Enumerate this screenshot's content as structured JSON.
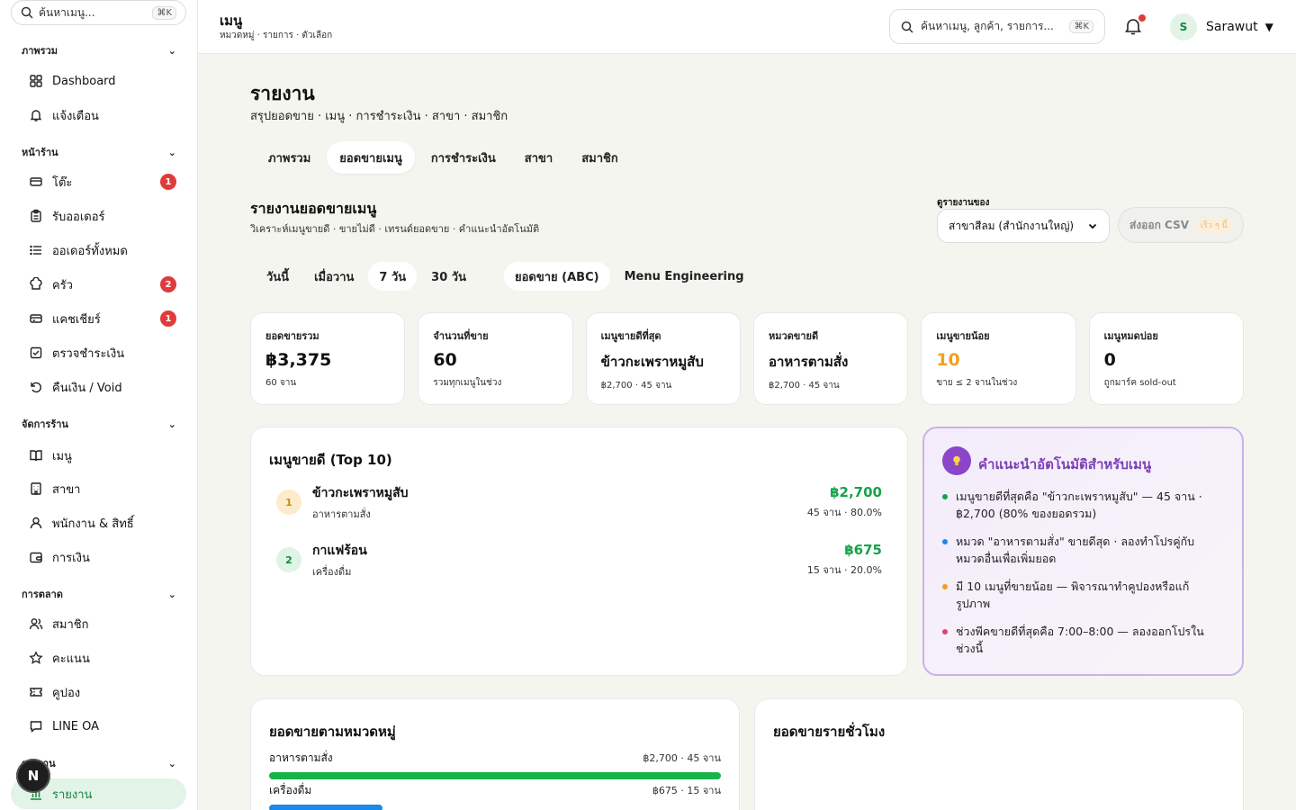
{
  "sidebar": {
    "search_placeholder": "ค้นหาเมนู...",
    "search_kbd": "⌘K",
    "sections": [
      {
        "label": "ภาพรวม",
        "items": [
          {
            "label": "Dashboard"
          },
          {
            "label": "แจ้งเตือน"
          }
        ]
      },
      {
        "label": "หน้าร้าน",
        "items": [
          {
            "label": "โต๊ะ",
            "badge": "1"
          },
          {
            "label": "รับออเดอร์"
          },
          {
            "label": "ออเดอร์ทั้งหมด"
          },
          {
            "label": "ครัว",
            "badge": "2"
          },
          {
            "label": "แคชเชียร์",
            "badge": "1"
          },
          {
            "label": "ตรวจชำระเงิน"
          },
          {
            "label": "คืนเงิน / Void"
          }
        ]
      },
      {
        "label": "จัดการร้าน",
        "items": [
          {
            "label": "เมนู"
          },
          {
            "label": "สาขา"
          },
          {
            "label": "พนักงาน & สิทธิ์"
          },
          {
            "label": "การเงิน"
          }
        ]
      },
      {
        "label": "การตลาด",
        "items": [
          {
            "label": "สมาชิก"
          },
          {
            "label": "คะแนน"
          },
          {
            "label": "คูปอง"
          },
          {
            "label": "LINE OA"
          }
        ]
      },
      {
        "label": "รายงาน",
        "items": [
          {
            "label": "รายงาน"
          }
        ]
      }
    ],
    "fab_label": "N"
  },
  "topbar": {
    "title": "เมนู",
    "subtitle": "หมวดหมู่ · รายการ · ตัวเลือก",
    "search_placeholder": "ค้นหาเมนู, ลูกค้า, รายการ...",
    "search_kbd": "⌘K",
    "user_initial": "S",
    "user_name": "Sarawut",
    "caret": "▼"
  },
  "page": {
    "title": "รายงาน",
    "subtitle": "สรุปยอดขาย · เมนู · การชำระเงิน · สาขา · สมาชิก",
    "tabs": [
      {
        "label": "ภาพรวม"
      },
      {
        "label": "ยอดขายเมนู",
        "active": true
      },
      {
        "label": "การชำระเงิน"
      },
      {
        "label": "สาขา"
      },
      {
        "label": "สมาชิก"
      }
    ]
  },
  "report": {
    "title": "รายงานยอดขายเมนู",
    "subtitle": "วิเคราะห์เมนูขายดี · ขายไม่ดี · เทรนด์ยอดขาย · คำแนะนำอัตโนมัติ",
    "branch_label": "ดูรายงานของ",
    "branch_value": "สาขาสีลม (สำนักงานใหญ่)",
    "csv_label": "ส่งออก CSV",
    "csv_soon": "เร็ว ๆ นี้",
    "ranges": [
      {
        "label": "วันนี้"
      },
      {
        "label": "เมื่อวาน"
      },
      {
        "label": "7 วัน",
        "active": true
      },
      {
        "label": "30 วัน"
      }
    ],
    "views": [
      {
        "label": "ยอดขาย (ABC)",
        "active": true
      },
      {
        "label": "Menu Engineering"
      }
    ]
  },
  "kpis": [
    {
      "label": "ยอดขายรวม",
      "value": "฿3,375",
      "sub": "60 จาน"
    },
    {
      "label": "จำนวนที่ขาย",
      "value": "60",
      "sub": "รวมทุกเมนูในช่วง"
    },
    {
      "label": "เมนูขายดีที่สุด",
      "value": "ข้าวกะเพราหมูสับ",
      "sub": "฿2,700 · 45 จาน"
    },
    {
      "label": "หมวดขายดี",
      "value": "อาหารตามสั่ง",
      "sub": "฿2,700 · 45 จาน"
    },
    {
      "label": "เมนูขายน้อย",
      "value": "10",
      "sub": "ขาย ≤ 2 จานในช่วง",
      "color": "#f0a020"
    },
    {
      "label": "เมนูหมดบ่อย",
      "value": "0",
      "sub": "ถูกมาร์ค sold-out"
    }
  ],
  "top10": {
    "title": "เมนูขายดี (Top 10)",
    "items": [
      {
        "rank": "1",
        "name": "ข้าวกะเพราหมูสับ",
        "category": "อาหารตามสั่ง",
        "amount": "฿2,700",
        "meta": "45 จาน · 80.0%"
      },
      {
        "rank": "2",
        "name": "กาแฟร้อน",
        "category": "เครื่องดื่ม",
        "amount": "฿675",
        "meta": "15 จาน · 20.0%"
      }
    ]
  },
  "insights": {
    "title": "คำแนะนำอัตโนมัติสำหรับเมนู",
    "items": [
      {
        "text": "เมนูขายดีที่สุดคือ \"ข้าวกะเพราหมูสับ\" — 45 จาน · ฿2,700 (80% ของยอดรวม)",
        "color": "#17a34a"
      },
      {
        "text": "หมวด \"อาหารตามสั่ง\" ขายดีสุด · ลองทำโปรคู่กับหมวดอื่นเพื่อเพิ่มยอด",
        "color": "#1e88e5"
      },
      {
        "text": "มี 10 เมนูที่ขายน้อย — พิจารณาทำคูปองหรือแก้รูปภาพ",
        "color": "#f0a020"
      },
      {
        "text": "ช่วงพีคขายดีที่สุดคือ 7:00–8:00 — ลองออกโปรในช่วงนี้",
        "color": "#e0407a"
      }
    ]
  },
  "categories": {
    "title": "ยอดขายตามหมวดหมู่",
    "items": [
      {
        "name": "อาหารตามสั่ง",
        "value": "฿2,700 · 45 จาน",
        "share": 1.0,
        "color": "#17b34a"
      },
      {
        "name": "เครื่องดื่ม",
        "value": "฿675 · 15 จาน",
        "share": 0.25,
        "color": "#1e88e5"
      }
    ]
  },
  "hourly": {
    "title": "ยอดขายรายชั่วโมง"
  }
}
